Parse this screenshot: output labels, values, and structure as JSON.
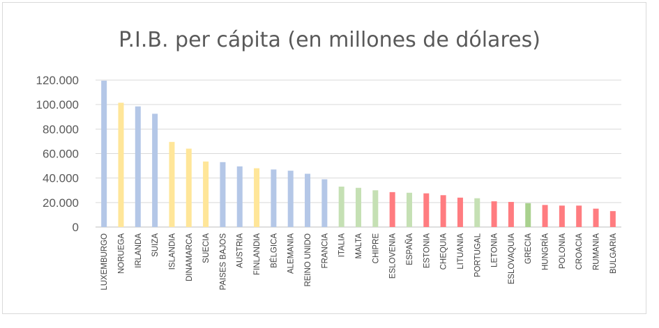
{
  "chart_data": {
    "type": "bar",
    "title": "P.I.B. per cápita (en millones de dólares)",
    "xlabel": "",
    "ylabel": "",
    "ylim": [
      0,
      120000
    ],
    "y_ticks": [
      "0",
      "20.000",
      "40.000",
      "60.000",
      "80.000",
      "100.000",
      "120.000"
    ],
    "y_tick_values": [
      0,
      20000,
      40000,
      60000,
      80000,
      100000,
      120000
    ],
    "grid": true,
    "categories": [
      "LUXEMBURGO",
      "NORUEGA",
      "IRLANDA",
      "SUIZA",
      "ISLANDIA",
      "DINAMARCA",
      "SUECIA",
      "PAISES BAJOS",
      "AUSTRIA",
      "FINLANDIA",
      "BÉLGICA",
      "ALEMANIA",
      "REINO UNIDO",
      "FRANCIA",
      "ITALIA",
      "MALTA",
      "CHIPRE",
      "ESLOVENIA",
      "ESPAÑA",
      "ESTONIA",
      "CHEQUIA",
      "LITUANIA",
      "PORTUGAL",
      "LETONIA",
      "ESLOVAQUIA",
      "GRECIA",
      "HUNGRÍA",
      "POLONIA",
      "CROACIA",
      "RUMANIA",
      "BULGARIA"
    ],
    "values": [
      119500,
      101500,
      98500,
      92500,
      69500,
      64000,
      53500,
      53000,
      49500,
      48000,
      47000,
      46000,
      43500,
      39000,
      33000,
      32000,
      30000,
      28500,
      28000,
      27500,
      26000,
      24000,
      23500,
      21000,
      20500,
      19500,
      18000,
      17500,
      17500,
      15000,
      13000
    ],
    "bar_colors": [
      "#b4c7e7",
      "#ffe699",
      "#b4c7e7",
      "#b4c7e7",
      "#ffe699",
      "#ffe699",
      "#ffe699",
      "#b4c7e7",
      "#b4c7e7",
      "#ffe699",
      "#b4c7e7",
      "#b4c7e7",
      "#b4c7e7",
      "#b4c7e7",
      "#c5e0b4",
      "#c5e0b4",
      "#c5e0b4",
      "#ff7c80",
      "#c5e0b4",
      "#ff7c80",
      "#ff7c80",
      "#ff7c80",
      "#c5e0b4",
      "#ff7c80",
      "#ff7c80",
      "#a9d18e",
      "#ff7c80",
      "#ff7c80",
      "#ff7c80",
      "#ff7c80",
      "#ff7c80"
    ]
  }
}
